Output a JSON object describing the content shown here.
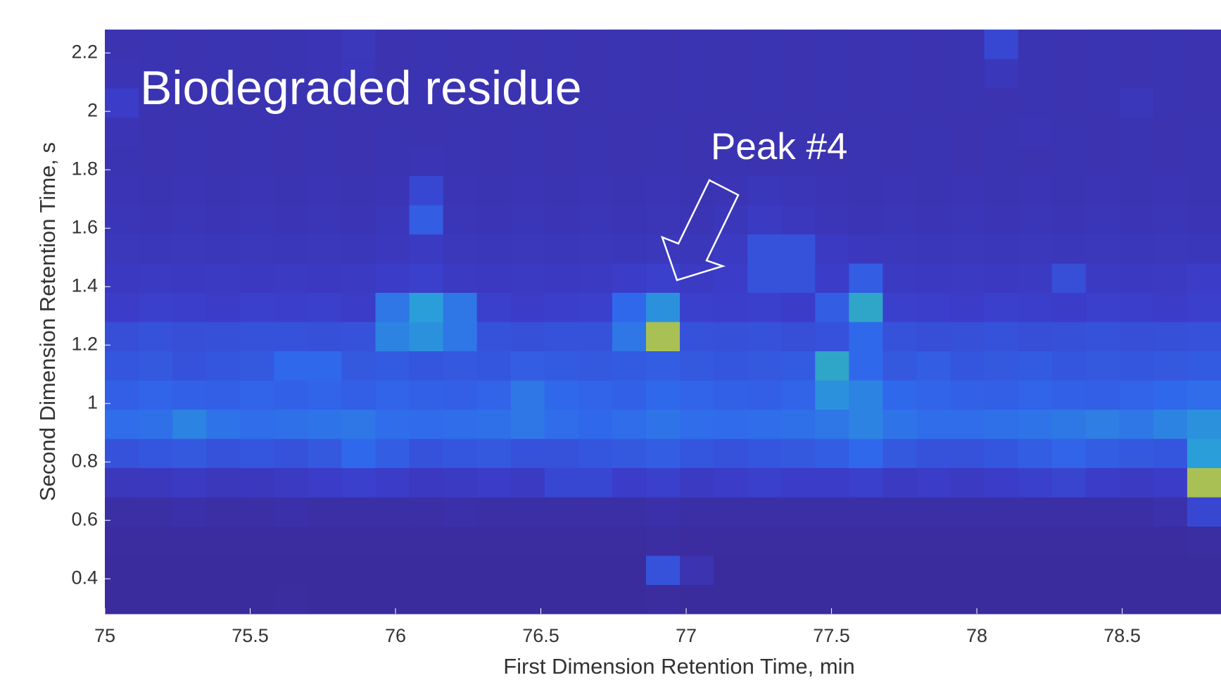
{
  "chart_data": {
    "type": "heatmap",
    "title": "Biodegraded residue",
    "annotation": "Peak #4",
    "xlabel": "First Dimension Retention Time, min",
    "ylabel": "Second Dimension Retention Time, s",
    "xlim": [
      75,
      78.84
    ],
    "ylim": [
      0.28,
      2.28
    ],
    "xticks": [
      75,
      75.5,
      76,
      76.5,
      77,
      77.5,
      78,
      78.5
    ],
    "yticks": [
      0.4,
      0.6,
      0.8,
      1,
      1.2,
      1.4,
      1.6,
      1.8,
      2,
      2.2
    ],
    "clim": [
      0,
      1
    ],
    "colormap": [
      "#3b2a98",
      "#3b3cc8",
      "#3068ec",
      "#2a9ed8",
      "#3cbc96",
      "#f2c32a"
    ],
    "z": [
      [
        0.02,
        0.02,
        0.02,
        0.02,
        0.02,
        0.03,
        0.02,
        0.02,
        0.02,
        0.02,
        0.02,
        0.02,
        0.02,
        0.02,
        0.02,
        0.02,
        0.03,
        0.02,
        0.02,
        0.02,
        0.02,
        0.02,
        0.02,
        0.02,
        0.02,
        0.02,
        0.02,
        0.02,
        0.02,
        0.02,
        0.02,
        0.02,
        0.02
      ],
      [
        0.02,
        0.02,
        0.02,
        0.02,
        0.02,
        0.02,
        0.02,
        0.02,
        0.02,
        0.02,
        0.02,
        0.02,
        0.02,
        0.02,
        0.02,
        0.02,
        0.3,
        0.1,
        0.02,
        0.02,
        0.02,
        0.02,
        0.02,
        0.02,
        0.02,
        0.02,
        0.02,
        0.02,
        0.02,
        0.02,
        0.02,
        0.02,
        0.02
      ],
      [
        0.03,
        0.03,
        0.03,
        0.03,
        0.03,
        0.03,
        0.03,
        0.03,
        0.03,
        0.03,
        0.03,
        0.03,
        0.03,
        0.03,
        0.03,
        0.03,
        0.04,
        0.03,
        0.03,
        0.03,
        0.03,
        0.03,
        0.03,
        0.03,
        0.03,
        0.03,
        0.03,
        0.03,
        0.03,
        0.03,
        0.03,
        0.03,
        0.04
      ],
      [
        0.06,
        0.06,
        0.07,
        0.06,
        0.06,
        0.07,
        0.06,
        0.06,
        0.06,
        0.06,
        0.07,
        0.06,
        0.06,
        0.06,
        0.06,
        0.06,
        0.07,
        0.06,
        0.06,
        0.06,
        0.06,
        0.06,
        0.06,
        0.06,
        0.06,
        0.06,
        0.06,
        0.06,
        0.06,
        0.06,
        0.06,
        0.08,
        0.25
      ],
      [
        0.15,
        0.16,
        0.18,
        0.15,
        0.16,
        0.18,
        0.2,
        0.22,
        0.2,
        0.17,
        0.18,
        0.2,
        0.18,
        0.25,
        0.25,
        0.2,
        0.22,
        0.18,
        0.2,
        0.22,
        0.2,
        0.2,
        0.22,
        0.18,
        0.2,
        0.18,
        0.2,
        0.22,
        0.24,
        0.2,
        0.18,
        0.2,
        0.92
      ],
      [
        0.3,
        0.32,
        0.33,
        0.3,
        0.32,
        0.3,
        0.33,
        0.4,
        0.35,
        0.3,
        0.32,
        0.33,
        0.3,
        0.3,
        0.32,
        0.33,
        0.35,
        0.32,
        0.3,
        0.32,
        0.33,
        0.35,
        0.4,
        0.33,
        0.3,
        0.3,
        0.32,
        0.35,
        0.38,
        0.35,
        0.33,
        0.32,
        0.6
      ],
      [
        0.42,
        0.43,
        0.5,
        0.44,
        0.42,
        0.43,
        0.44,
        0.45,
        0.42,
        0.41,
        0.42,
        0.43,
        0.45,
        0.42,
        0.4,
        0.42,
        0.44,
        0.42,
        0.41,
        0.42,
        0.43,
        0.45,
        0.5,
        0.44,
        0.42,
        0.42,
        0.43,
        0.44,
        0.46,
        0.48,
        0.45,
        0.5,
        0.55
      ],
      [
        0.36,
        0.38,
        0.37,
        0.36,
        0.38,
        0.37,
        0.38,
        0.36,
        0.38,
        0.37,
        0.36,
        0.38,
        0.45,
        0.4,
        0.38,
        0.37,
        0.4,
        0.38,
        0.37,
        0.36,
        0.38,
        0.55,
        0.5,
        0.4,
        0.38,
        0.37,
        0.36,
        0.38,
        0.37,
        0.36,
        0.38,
        0.4,
        0.42
      ],
      [
        0.32,
        0.33,
        0.3,
        0.32,
        0.33,
        0.4,
        0.4,
        0.33,
        0.34,
        0.32,
        0.33,
        0.32,
        0.35,
        0.34,
        0.33,
        0.34,
        0.35,
        0.33,
        0.32,
        0.33,
        0.34,
        0.65,
        0.4,
        0.33,
        0.35,
        0.32,
        0.33,
        0.34,
        0.32,
        0.33,
        0.32,
        0.33,
        0.34
      ],
      [
        0.28,
        0.3,
        0.28,
        0.29,
        0.3,
        0.3,
        0.29,
        0.3,
        0.5,
        0.55,
        0.45,
        0.3,
        0.29,
        0.3,
        0.3,
        0.45,
        0.92,
        0.3,
        0.29,
        0.3,
        0.28,
        0.3,
        0.4,
        0.3,
        0.28,
        0.29,
        0.3,
        0.28,
        0.29,
        0.3,
        0.28,
        0.29,
        0.3
      ],
      [
        0.2,
        0.22,
        0.21,
        0.2,
        0.22,
        0.21,
        0.22,
        0.2,
        0.45,
        0.6,
        0.45,
        0.22,
        0.2,
        0.21,
        0.22,
        0.4,
        0.55,
        0.22,
        0.21,
        0.22,
        0.2,
        0.35,
        0.65,
        0.22,
        0.21,
        0.2,
        0.22,
        0.21,
        0.2,
        0.22,
        0.21,
        0.2,
        0.22
      ],
      [
        0.17,
        0.18,
        0.17,
        0.18,
        0.17,
        0.18,
        0.17,
        0.18,
        0.2,
        0.22,
        0.18,
        0.17,
        0.18,
        0.17,
        0.18,
        0.2,
        0.22,
        0.18,
        0.2,
        0.3,
        0.3,
        0.2,
        0.35,
        0.18,
        0.17,
        0.18,
        0.17,
        0.18,
        0.28,
        0.18,
        0.17,
        0.18,
        0.2
      ],
      [
        0.15,
        0.14,
        0.15,
        0.14,
        0.15,
        0.14,
        0.15,
        0.14,
        0.16,
        0.18,
        0.15,
        0.14,
        0.15,
        0.14,
        0.15,
        0.14,
        0.15,
        0.14,
        0.18,
        0.3,
        0.3,
        0.18,
        0.16,
        0.15,
        0.14,
        0.15,
        0.14,
        0.15,
        0.14,
        0.15,
        0.14,
        0.15,
        0.14
      ],
      [
        0.13,
        0.12,
        0.13,
        0.12,
        0.13,
        0.12,
        0.13,
        0.12,
        0.14,
        0.35,
        0.13,
        0.12,
        0.13,
        0.12,
        0.13,
        0.12,
        0.13,
        0.12,
        0.14,
        0.18,
        0.16,
        0.13,
        0.12,
        0.13,
        0.12,
        0.13,
        0.12,
        0.13,
        0.12,
        0.13,
        0.12,
        0.13,
        0.12
      ],
      [
        0.12,
        0.11,
        0.12,
        0.11,
        0.12,
        0.11,
        0.12,
        0.11,
        0.12,
        0.25,
        0.12,
        0.11,
        0.12,
        0.11,
        0.12,
        0.11,
        0.12,
        0.11,
        0.12,
        0.14,
        0.13,
        0.12,
        0.11,
        0.12,
        0.11,
        0.12,
        0.11,
        0.12,
        0.11,
        0.12,
        0.11,
        0.12,
        0.11
      ],
      [
        0.11,
        0.1,
        0.11,
        0.1,
        0.11,
        0.1,
        0.11,
        0.1,
        0.11,
        0.12,
        0.11,
        0.1,
        0.11,
        0.1,
        0.11,
        0.1,
        0.11,
        0.1,
        0.11,
        0.1,
        0.11,
        0.1,
        0.11,
        0.1,
        0.11,
        0.1,
        0.11,
        0.1,
        0.11,
        0.1,
        0.11,
        0.1,
        0.11
      ],
      [
        0.12,
        0.1,
        0.11,
        0.1,
        0.11,
        0.1,
        0.11,
        0.1,
        0.11,
        0.1,
        0.11,
        0.1,
        0.11,
        0.1,
        0.11,
        0.1,
        0.11,
        0.1,
        0.11,
        0.1,
        0.11,
        0.1,
        0.11,
        0.1,
        0.11,
        0.1,
        0.11,
        0.12,
        0.11,
        0.1,
        0.11,
        0.1,
        0.11
      ],
      [
        0.2,
        0.11,
        0.1,
        0.11,
        0.1,
        0.11,
        0.1,
        0.11,
        0.1,
        0.11,
        0.1,
        0.11,
        0.1,
        0.11,
        0.1,
        0.11,
        0.1,
        0.11,
        0.1,
        0.11,
        0.1,
        0.11,
        0.1,
        0.11,
        0.1,
        0.11,
        0.1,
        0.11,
        0.1,
        0.11,
        0.14,
        0.11,
        0.1
      ],
      [
        0.12,
        0.11,
        0.1,
        0.11,
        0.1,
        0.11,
        0.12,
        0.14,
        0.1,
        0.11,
        0.1,
        0.11,
        0.1,
        0.11,
        0.1,
        0.11,
        0.1,
        0.11,
        0.1,
        0.11,
        0.1,
        0.11,
        0.1,
        0.11,
        0.1,
        0.11,
        0.14,
        0.11,
        0.1,
        0.11,
        0.1,
        0.11,
        0.1
      ],
      [
        0.1,
        0.11,
        0.1,
        0.11,
        0.1,
        0.11,
        0.12,
        0.15,
        0.1,
        0.11,
        0.1,
        0.11,
        0.1,
        0.11,
        0.1,
        0.11,
        0.1,
        0.11,
        0.1,
        0.11,
        0.1,
        0.11,
        0.1,
        0.11,
        0.1,
        0.11,
        0.25,
        0.11,
        0.1,
        0.11,
        0.1,
        0.11,
        0.1
      ]
    ]
  }
}
